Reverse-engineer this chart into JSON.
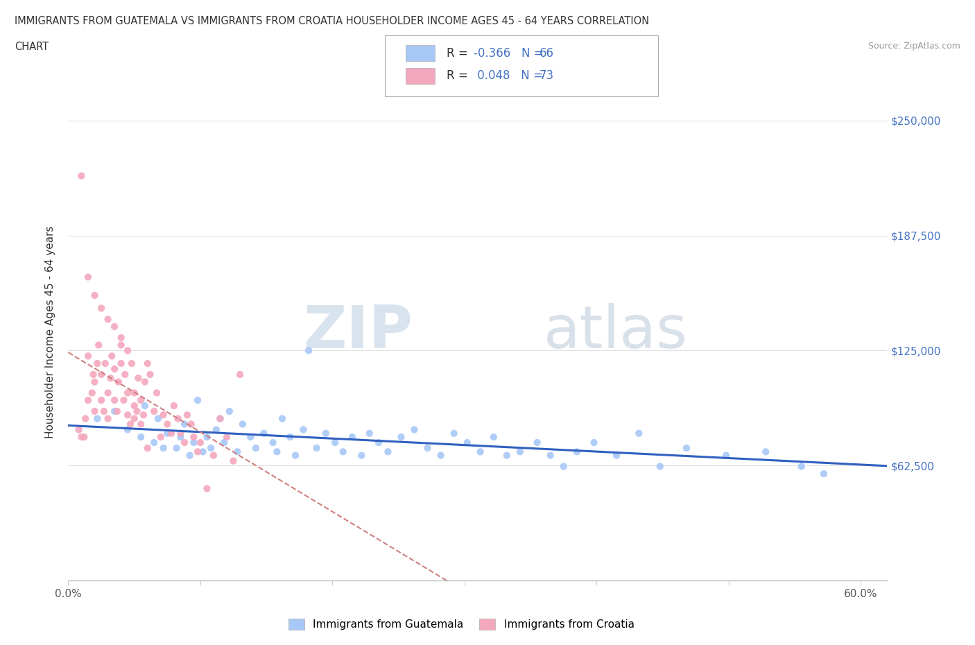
{
  "title_line1": "IMMIGRANTS FROM GUATEMALA VS IMMIGRANTS FROM CROATIA HOUSEHOLDER INCOME AGES 45 - 64 YEARS CORRELATION",
  "title_line2": "CHART",
  "source": "Source: ZipAtlas.com",
  "ylabel": "Householder Income Ages 45 - 64 years",
  "xlim": [
    0.0,
    0.62
  ],
  "ylim": [
    0,
    270000
  ],
  "yticks": [
    0,
    62500,
    125000,
    187500,
    250000
  ],
  "ytick_labels": [
    "",
    "$62,500",
    "$125,000",
    "$187,500",
    "$250,000"
  ],
  "xticks": [
    0.0,
    0.1,
    0.2,
    0.3,
    0.4,
    0.5,
    0.6
  ],
  "xtick_labels": [
    "0.0%",
    "",
    "",
    "",
    "",
    "",
    "60.0%"
  ],
  "guatemala_color": "#a8c8f8",
  "croatia_color": "#f4a8be",
  "guatemala_line_color": "#3060c0",
  "croatia_line_color": "#d08080",
  "R_guatemala": -0.366,
  "N_guatemala": 66,
  "R_croatia": 0.048,
  "N_croatia": 73,
  "watermark_zip": "ZIP",
  "watermark_atlas": "atlas",
  "legend_guatemala": "Immigrants from Guatemala",
  "legend_croatia": "Immigrants from Croatia",
  "guatemala_x": [
    0.022,
    0.035,
    0.045,
    0.055,
    0.058,
    0.065,
    0.068,
    0.072,
    0.075,
    0.082,
    0.085,
    0.088,
    0.092,
    0.095,
    0.098,
    0.102,
    0.105,
    0.108,
    0.112,
    0.115,
    0.118,
    0.122,
    0.128,
    0.132,
    0.138,
    0.142,
    0.148,
    0.155,
    0.158,
    0.162,
    0.168,
    0.172,
    0.178,
    0.182,
    0.188,
    0.195,
    0.202,
    0.208,
    0.215,
    0.222,
    0.228,
    0.235,
    0.242,
    0.252,
    0.262,
    0.272,
    0.282,
    0.292,
    0.302,
    0.312,
    0.322,
    0.332,
    0.342,
    0.355,
    0.365,
    0.375,
    0.385,
    0.398,
    0.415,
    0.432,
    0.448,
    0.468,
    0.498,
    0.528,
    0.555,
    0.572
  ],
  "guatemala_y": [
    88000,
    92000,
    82000,
    78000,
    95000,
    75000,
    88000,
    72000,
    80000,
    72000,
    78000,
    85000,
    68000,
    75000,
    98000,
    70000,
    78000,
    72000,
    82000,
    88000,
    75000,
    92000,
    70000,
    85000,
    78000,
    72000,
    80000,
    75000,
    70000,
    88000,
    78000,
    68000,
    82000,
    125000,
    72000,
    80000,
    75000,
    70000,
    78000,
    68000,
    80000,
    75000,
    70000,
    78000,
    82000,
    72000,
    68000,
    80000,
    75000,
    70000,
    78000,
    68000,
    70000,
    75000,
    68000,
    62000,
    70000,
    75000,
    68000,
    80000,
    62000,
    72000,
    68000,
    70000,
    62000,
    58000
  ],
  "croatia_x": [
    0.008,
    0.01,
    0.012,
    0.013,
    0.015,
    0.015,
    0.018,
    0.019,
    0.02,
    0.02,
    0.022,
    0.023,
    0.025,
    0.025,
    0.027,
    0.028,
    0.03,
    0.03,
    0.032,
    0.033,
    0.035,
    0.035,
    0.037,
    0.038,
    0.04,
    0.04,
    0.042,
    0.043,
    0.045,
    0.045,
    0.047,
    0.048,
    0.05,
    0.05,
    0.052,
    0.053,
    0.055,
    0.055,
    0.057,
    0.058,
    0.06,
    0.062,
    0.065,
    0.067,
    0.07,
    0.072,
    0.075,
    0.078,
    0.08,
    0.083,
    0.085,
    0.088,
    0.09,
    0.093,
    0.095,
    0.098,
    0.1,
    0.105,
    0.11,
    0.115,
    0.12,
    0.125,
    0.13,
    0.01,
    0.015,
    0.02,
    0.025,
    0.03,
    0.035,
    0.04,
    0.045,
    0.05,
    0.06
  ],
  "croatia_y": [
    82000,
    78000,
    78000,
    88000,
    122000,
    98000,
    102000,
    112000,
    92000,
    108000,
    118000,
    128000,
    98000,
    112000,
    92000,
    118000,
    88000,
    102000,
    110000,
    122000,
    98000,
    115000,
    92000,
    108000,
    118000,
    128000,
    98000,
    112000,
    90000,
    102000,
    85000,
    118000,
    88000,
    102000,
    92000,
    110000,
    85000,
    98000,
    90000,
    108000,
    118000,
    112000,
    92000,
    102000,
    78000,
    90000,
    85000,
    80000,
    95000,
    88000,
    80000,
    75000,
    90000,
    85000,
    78000,
    70000,
    75000,
    50000,
    68000,
    88000,
    78000,
    65000,
    112000,
    220000,
    165000,
    155000,
    148000,
    142000,
    138000,
    132000,
    125000,
    95000,
    72000
  ]
}
